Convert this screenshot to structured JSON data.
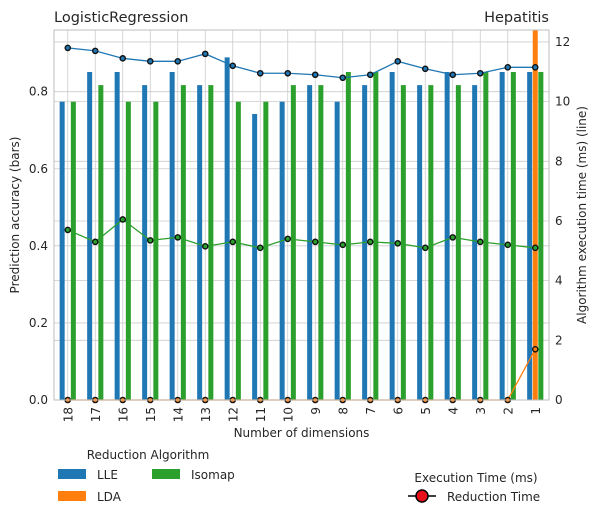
{
  "chart_data": {
    "type": "bar",
    "title_left": "LogisticRegression",
    "title_right": "Hepatitis",
    "xlabel": "Number of dimensions",
    "ylabel_left": "Prediction accuracy (bars)",
    "ylabel_right": "Algorithm execution time (ms) (line)",
    "categories": [
      "18",
      "17",
      "16",
      "15",
      "14",
      "13",
      "12",
      "11",
      "10",
      "9",
      "8",
      "7",
      "6",
      "5",
      "4",
      "3",
      "2",
      "1"
    ],
    "ylim_left": [
      0,
      0.96
    ],
    "ylim_right": [
      0,
      12.4
    ],
    "yticks_left": [
      "0.0",
      "0.2",
      "0.4",
      "0.6",
      "0.8"
    ],
    "yticks_right": [
      "0",
      "2",
      "4",
      "6",
      "8",
      "10",
      "12"
    ],
    "grid": true,
    "bar_series": [
      {
        "name": "LLE",
        "color": "#1f77b4",
        "values": [
          0.774,
          0.851,
          0.851,
          0.817,
          0.851,
          0.817,
          0.889,
          0.742,
          0.774,
          0.817,
          0.774,
          0.817,
          0.851,
          0.817,
          0.851,
          0.817,
          0.851,
          0.851
        ]
      },
      {
        "name": "LDA",
        "color": "#ff7f0e",
        "values": [
          0.005,
          0.005,
          0.005,
          0.005,
          0.005,
          0.005,
          0.005,
          0.005,
          0.005,
          0.005,
          0.005,
          0.005,
          0.005,
          0.005,
          0.005,
          0.005,
          0.005,
          0.96
        ]
      },
      {
        "name": "Isomap",
        "color": "#2ca02c",
        "values": [
          0.774,
          0.817,
          0.774,
          0.774,
          0.817,
          0.817,
          0.774,
          0.774,
          0.817,
          0.817,
          0.851,
          0.851,
          0.817,
          0.817,
          0.817,
          0.851,
          0.851,
          0.851
        ]
      }
    ],
    "line_series": [
      {
        "name": "LLE",
        "color": "#1f77b4",
        "values": [
          11.8,
          11.7,
          11.45,
          11.35,
          11.35,
          11.6,
          11.2,
          10.95,
          10.95,
          10.9,
          10.8,
          10.9,
          11.35,
          11.1,
          10.9,
          10.95,
          11.15,
          11.15
        ]
      },
      {
        "name": "LDA",
        "color": "#ff7f0e",
        "values": [
          0,
          0,
          0,
          0,
          0,
          0,
          0,
          0,
          0,
          0,
          0,
          0,
          0,
          0,
          0,
          0,
          0,
          1.7
        ]
      },
      {
        "name": "Isomap",
        "color": "#2ca02c",
        "values": [
          5.7,
          5.3,
          6.05,
          5.35,
          5.45,
          5.15,
          5.3,
          5.1,
          5.4,
          5.3,
          5.2,
          5.3,
          5.25,
          5.1,
          5.45,
          5.3,
          5.2,
          5.1
        ]
      }
    ],
    "legend_bars": {
      "title": "Reduction Algorithm",
      "items": [
        "LLE",
        "LDA",
        "Isomap"
      ]
    },
    "legend_line": {
      "title": "Execution Time (ms)",
      "item": "Reduction Time",
      "marker_color": "#e8101a"
    }
  }
}
